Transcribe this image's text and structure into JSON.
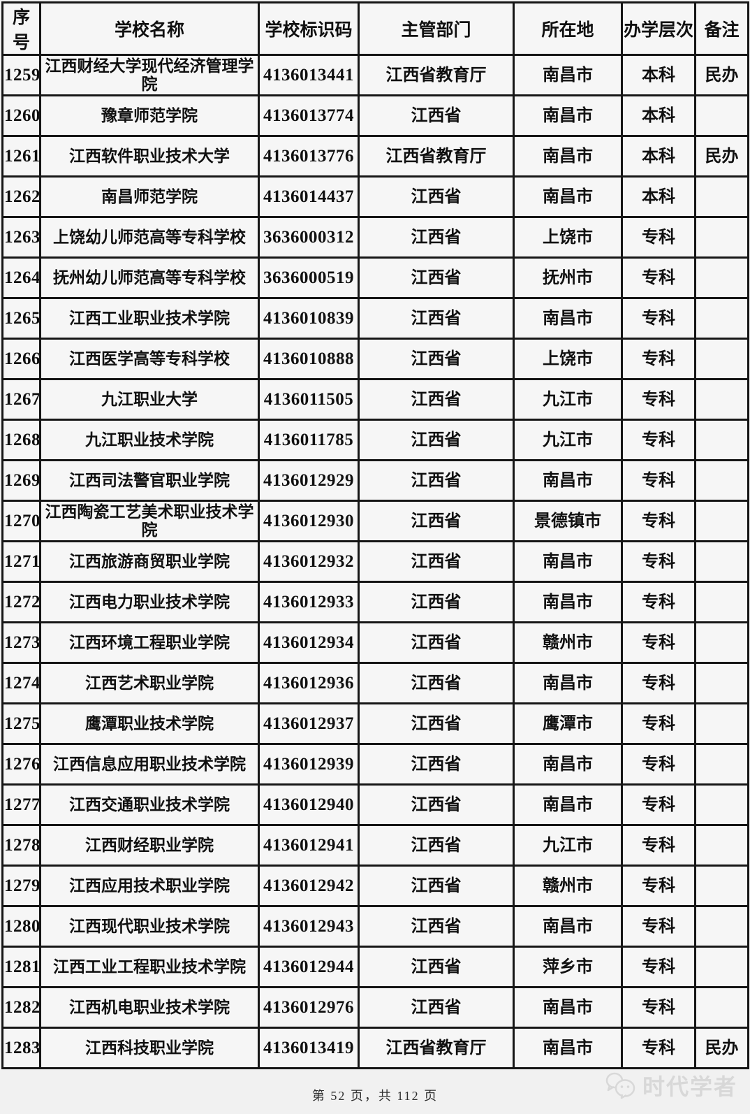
{
  "table": {
    "columns": [
      {
        "key": "index",
        "label": "序号"
      },
      {
        "key": "school-name",
        "label": "学校名称"
      },
      {
        "key": "school-code",
        "label": "学校标识码"
      },
      {
        "key": "authority",
        "label": "主管部门"
      },
      {
        "key": "location",
        "label": "所在地"
      },
      {
        "key": "level",
        "label": "办学层次"
      },
      {
        "key": "remark",
        "label": "备注"
      }
    ],
    "rows": [
      [
        "1259",
        "江西财经大学现代经济管理学院",
        "4136013441",
        "江西省教育厅",
        "南昌市",
        "本科",
        "民办"
      ],
      [
        "1260",
        "豫章师范学院",
        "4136013774",
        "江西省",
        "南昌市",
        "本科",
        ""
      ],
      [
        "1261",
        "江西软件职业技术大学",
        "4136013776",
        "江西省教育厅",
        "南昌市",
        "本科",
        "民办"
      ],
      [
        "1262",
        "南昌师范学院",
        "4136014437",
        "江西省",
        "南昌市",
        "本科",
        ""
      ],
      [
        "1263",
        "上饶幼儿师范高等专科学校",
        "3636000312",
        "江西省",
        "上饶市",
        "专科",
        ""
      ],
      [
        "1264",
        "抚州幼儿师范高等专科学校",
        "3636000519",
        "江西省",
        "抚州市",
        "专科",
        ""
      ],
      [
        "1265",
        "江西工业职业技术学院",
        "4136010839",
        "江西省",
        "南昌市",
        "专科",
        ""
      ],
      [
        "1266",
        "江西医学高等专科学校",
        "4136010888",
        "江西省",
        "上饶市",
        "专科",
        ""
      ],
      [
        "1267",
        "九江职业大学",
        "4136011505",
        "江西省",
        "九江市",
        "专科",
        ""
      ],
      [
        "1268",
        "九江职业技术学院",
        "4136011785",
        "江西省",
        "九江市",
        "专科",
        ""
      ],
      [
        "1269",
        "江西司法警官职业学院",
        "4136012929",
        "江西省",
        "南昌市",
        "专科",
        ""
      ],
      [
        "1270",
        "江西陶瓷工艺美术职业技术学院",
        "4136012930",
        "江西省",
        "景德镇市",
        "专科",
        ""
      ],
      [
        "1271",
        "江西旅游商贸职业学院",
        "4136012932",
        "江西省",
        "南昌市",
        "专科",
        ""
      ],
      [
        "1272",
        "江西电力职业技术学院",
        "4136012933",
        "江西省",
        "南昌市",
        "专科",
        ""
      ],
      [
        "1273",
        "江西环境工程职业学院",
        "4136012934",
        "江西省",
        "赣州市",
        "专科",
        ""
      ],
      [
        "1274",
        "江西艺术职业学院",
        "4136012936",
        "江西省",
        "南昌市",
        "专科",
        ""
      ],
      [
        "1275",
        "鹰潭职业技术学院",
        "4136012937",
        "江西省",
        "鹰潭市",
        "专科",
        ""
      ],
      [
        "1276",
        "江西信息应用职业技术学院",
        "4136012939",
        "江西省",
        "南昌市",
        "专科",
        ""
      ],
      [
        "1277",
        "江西交通职业技术学院",
        "4136012940",
        "江西省",
        "南昌市",
        "专科",
        ""
      ],
      [
        "1278",
        "江西财经职业学院",
        "4136012941",
        "江西省",
        "九江市",
        "专科",
        ""
      ],
      [
        "1279",
        "江西应用技术职业学院",
        "4136012942",
        "江西省",
        "赣州市",
        "专科",
        ""
      ],
      [
        "1280",
        "江西现代职业技术学院",
        "4136012943",
        "江西省",
        "南昌市",
        "专科",
        ""
      ],
      [
        "1281",
        "江西工业工程职业技术学院",
        "4136012944",
        "江西省",
        "萍乡市",
        "专科",
        ""
      ],
      [
        "1282",
        "江西机电职业技术学院",
        "4136012976",
        "江西省",
        "南昌市",
        "专科",
        ""
      ],
      [
        "1283",
        "江西科技职业学院",
        "4136013419",
        "江西省教育厅",
        "南昌市",
        "专科",
        "民办"
      ]
    ]
  },
  "footer": {
    "page_text": "第 52 页，共 112 页",
    "watermark": "时代学者"
  },
  "colors": {
    "border": "#161616",
    "page_bg": "#f1f1f1",
    "cell_bg": "#f6f6f6",
    "text": "#101010",
    "footer_text": "#2e2e2e",
    "watermark": "#d8d8d8"
  }
}
